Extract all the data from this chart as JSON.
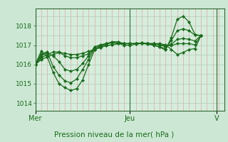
{
  "bg_color": "#cce8d4",
  "plot_bg_color": "#d4eedd",
  "grid_color_v": "#f0a0a0",
  "grid_color_h": "#b0ccb8",
  "line_color": "#1a6b1a",
  "marker_color": "#1a6b1a",
  "title": "Pression niveau de la mer( hPa )",
  "xlabel_mer": "Mer",
  "xlabel_jeu": "Jeu",
  "xlabel_v": "V",
  "ylim": [
    1013.6,
    1018.9
  ],
  "yticks": [
    1014,
    1015,
    1016,
    1017,
    1018
  ],
  "xlim": [
    0,
    96
  ],
  "x_mer": 0,
  "x_jeu": 48,
  "x_v": 92,
  "lines": [
    [
      1016.0,
      1016.7,
      1016.4,
      1015.6,
      1015.0,
      1014.8,
      1014.65,
      1014.75,
      1015.2,
      1016.0,
      1016.75,
      1016.95,
      1017.05,
      1017.15,
      1017.1,
      1017.0,
      1017.0,
      1017.05,
      1017.1,
      1017.05,
      1017.0,
      1016.9,
      1016.75,
      1017.4,
      1018.35,
      1018.5,
      1018.2,
      1017.55,
      1017.5
    ],
    [
      1016.0,
      1016.55,
      1016.65,
      1015.9,
      1015.45,
      1015.15,
      1015.05,
      1015.25,
      1015.75,
      1016.25,
      1016.85,
      1016.98,
      1017.08,
      1017.18,
      1017.18,
      1017.08,
      1017.08,
      1017.08,
      1017.12,
      1017.08,
      1017.02,
      1016.92,
      1016.82,
      1017.25,
      1017.75,
      1017.85,
      1017.75,
      1017.52,
      1017.5
    ],
    [
      1016.0,
      1016.45,
      1016.6,
      1016.45,
      1016.15,
      1015.75,
      1015.65,
      1015.75,
      1016.05,
      1016.45,
      1016.92,
      1017.02,
      1017.08,
      1017.12,
      1017.12,
      1017.08,
      1017.08,
      1017.08,
      1017.12,
      1017.08,
      1017.08,
      1017.02,
      1016.92,
      1017.05,
      1017.3,
      1017.35,
      1017.3,
      1017.22,
      1017.5
    ],
    [
      1016.0,
      1016.35,
      1016.5,
      1016.65,
      1016.65,
      1016.45,
      1016.35,
      1016.35,
      1016.45,
      1016.55,
      1016.78,
      1016.88,
      1016.98,
      1017.02,
      1017.08,
      1017.08,
      1017.08,
      1017.08,
      1017.08,
      1017.08,
      1017.08,
      1017.02,
      1016.98,
      1016.98,
      1017.08,
      1017.08,
      1017.08,
      1017.02,
      1017.5
    ],
    [
      1016.0,
      1016.25,
      1016.38,
      1016.52,
      1016.62,
      1016.58,
      1016.52,
      1016.52,
      1016.58,
      1016.68,
      1016.78,
      1016.88,
      1016.98,
      1017.02,
      1017.08,
      1017.08,
      1017.08,
      1017.08,
      1017.08,
      1017.08,
      1017.08,
      1017.08,
      1017.02,
      1016.78,
      1016.52,
      1016.62,
      1016.78,
      1016.82,
      1017.5
    ]
  ],
  "x_points": [
    0,
    3,
    6,
    9,
    12,
    15,
    18,
    21,
    24,
    27,
    30,
    33,
    36,
    39,
    42,
    45,
    48,
    51,
    54,
    57,
    60,
    63,
    66,
    69,
    72,
    75,
    78,
    81,
    84
  ]
}
